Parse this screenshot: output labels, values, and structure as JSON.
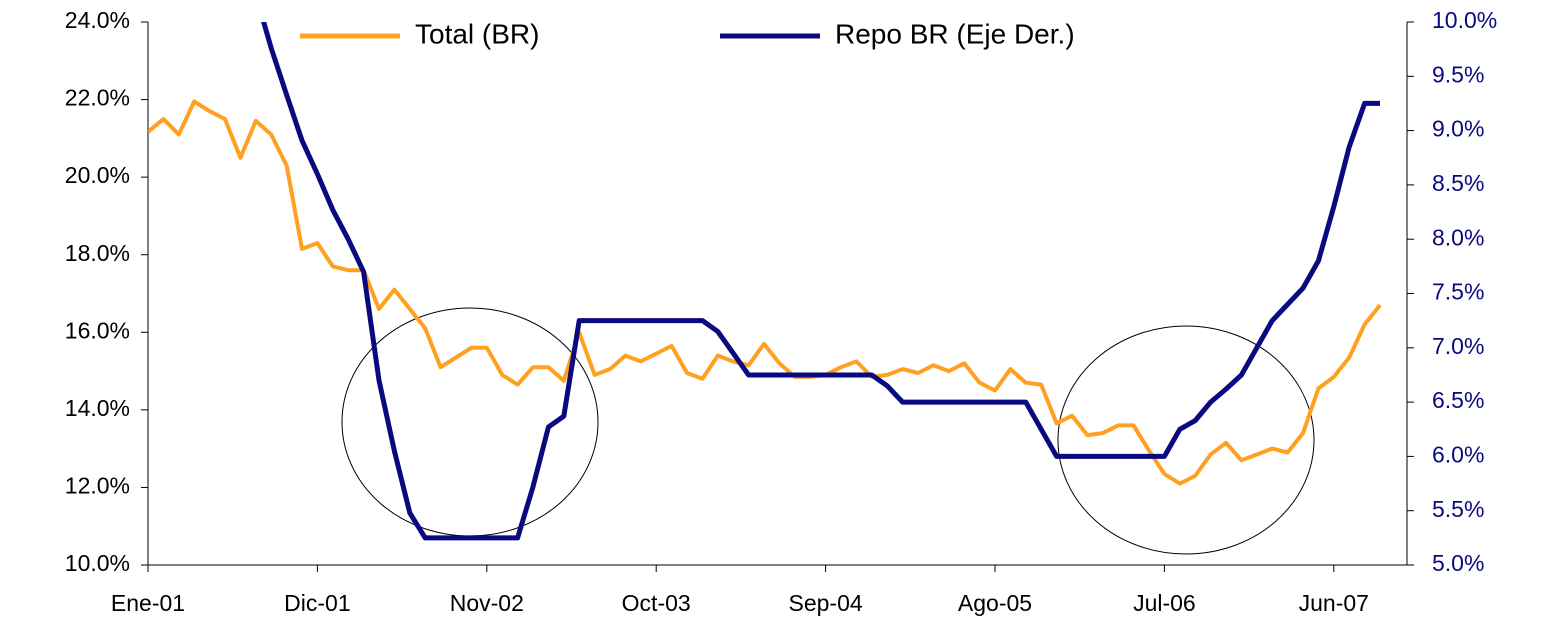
{
  "chart_data": {
    "type": "line",
    "categories": [
      "Ene-01",
      null,
      null,
      null,
      null,
      null,
      null,
      null,
      null,
      null,
      null,
      "Dic-01",
      null,
      null,
      null,
      null,
      null,
      null,
      null,
      null,
      null,
      null,
      "Nov-02",
      null,
      null,
      null,
      null,
      null,
      null,
      null,
      null,
      null,
      null,
      "Oct-03",
      null,
      null,
      null,
      null,
      null,
      null,
      null,
      null,
      null,
      null,
      "Sep-04",
      null,
      null,
      null,
      null,
      null,
      null,
      null,
      null,
      null,
      null,
      "Ago-05",
      null,
      null,
      null,
      null,
      null,
      null,
      null,
      null,
      null,
      null,
      "Jul-06",
      null,
      null,
      null,
      null,
      null,
      null,
      null,
      null,
      null,
      null,
      "Jun-07",
      null,
      null,
      null
    ],
    "series": [
      {
        "name": "Total (BR)",
        "color": "#ffa020",
        "values": [
          21.17,
          21.5,
          21.1,
          21.95,
          21.7,
          21.5,
          20.5,
          21.45,
          21.1,
          20.3,
          18.15,
          18.3,
          17.7,
          17.6,
          17.6,
          16.6,
          17.1,
          16.6,
          16.1,
          15.1,
          15.35,
          15.6,
          15.6,
          14.9,
          14.65,
          15.1,
          15.1,
          14.75,
          16.0,
          14.9,
          15.05,
          15.4,
          15.25,
          15.45,
          15.65,
          14.95,
          14.8,
          15.4,
          15.25,
          15.15,
          15.7,
          15.2,
          14.85,
          14.85,
          14.9,
          15.1,
          15.25,
          14.85,
          14.9,
          15.05,
          14.95,
          15.15,
          15.0,
          15.2,
          14.7,
          14.5,
          15.05,
          14.7,
          14.65,
          13.65,
          13.85,
          13.35,
          13.4,
          13.6,
          13.6,
          12.95,
          12.35,
          12.1,
          12.3,
          12.85,
          13.15,
          12.7,
          12.85,
          13.0,
          12.9,
          13.4,
          14.55,
          14.85,
          15.35,
          16.2,
          16.7
        ]
      },
      {
        "name": "Repo BR (Eje Der.)",
        "color": "#0a0a80",
        "axis": "y2",
        "values": [
          null,
          null,
          null,
          null,
          null,
          null,
          null,
          10.25,
          9.76,
          9.33,
          8.91,
          8.6,
          8.27,
          8.0,
          7.7,
          6.7,
          6.05,
          5.48,
          5.25,
          5.25,
          5.25,
          5.25,
          5.25,
          5.25,
          5.25,
          5.72,
          6.27,
          6.37,
          7.25,
          7.25,
          7.25,
          7.25,
          7.25,
          7.25,
          7.25,
          7.25,
          7.25,
          7.15,
          6.95,
          6.75,
          6.75,
          6.75,
          6.75,
          6.75,
          6.75,
          6.75,
          6.75,
          6.75,
          6.65,
          6.5,
          6.5,
          6.5,
          6.5,
          6.5,
          6.5,
          6.5,
          6.5,
          6.5,
          6.25,
          6.0,
          6.0,
          6.0,
          6.0,
          6.0,
          6.0,
          6.0,
          6.0,
          6.25,
          6.33,
          6.5,
          6.62,
          6.75,
          7.0,
          7.25,
          7.4,
          7.55,
          7.8,
          8.3,
          8.85,
          9.25,
          9.25
        ]
      }
    ],
    "ylim": [
      10,
      24
    ],
    "yticks": [
      {
        "value": 10,
        "label": "10.0%"
      },
      {
        "value": 12,
        "label": "12.0%"
      },
      {
        "value": 14,
        "label": "14.0%"
      },
      {
        "value": 16,
        "label": "16.0%"
      },
      {
        "value": 18,
        "label": "18.0%"
      },
      {
        "value": 20,
        "label": "20.0%"
      },
      {
        "value": 22,
        "label": "22.0%"
      },
      {
        "value": 24,
        "label": "24.0%"
      }
    ],
    "y2lim": [
      5,
      10
    ],
    "y2ticks": [
      {
        "value": 5,
        "label": "5.0%"
      },
      {
        "value": 5.5,
        "label": "5.5%"
      },
      {
        "value": 6,
        "label": "6.0%"
      },
      {
        "value": 6.5,
        "label": "6.5%"
      },
      {
        "value": 7,
        "label": "7.0%"
      },
      {
        "value": 7.5,
        "label": "7.5%"
      },
      {
        "value": 8,
        "label": "8.0%"
      },
      {
        "value": 8.5,
        "label": "8.5%"
      },
      {
        "value": 9,
        "label": "9.0%"
      },
      {
        "value": 9.5,
        "label": "9.5%"
      },
      {
        "value": 10,
        "label": "10.0%"
      }
    ],
    "legend": "top"
  }
}
